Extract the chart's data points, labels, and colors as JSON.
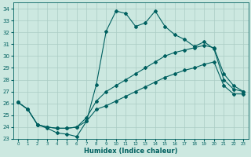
{
  "xlabel": "Humidex (Indice chaleur)",
  "bg_color": "#cce8e0",
  "line_color": "#006060",
  "grid_color": "#aaccc4",
  "xlim": [
    -0.5,
    23.5
  ],
  "ylim": [
    23,
    34.5
  ],
  "yticks": [
    23,
    24,
    25,
    26,
    27,
    28,
    29,
    30,
    31,
    32,
    33,
    34
  ],
  "xticks": [
    0,
    1,
    2,
    3,
    4,
    5,
    6,
    7,
    8,
    9,
    10,
    11,
    12,
    13,
    14,
    15,
    16,
    17,
    18,
    19,
    20,
    21,
    22,
    23
  ],
  "line1_y": [
    26.1,
    25.5,
    24.2,
    23.9,
    23.5,
    23.4,
    23.2,
    24.5,
    27.6,
    32.1,
    33.8,
    33.6,
    32.5,
    32.8,
    33.8,
    32.5,
    31.8,
    31.4,
    30.8,
    31.2,
    30.6,
    28.0,
    27.2,
    27.0
  ],
  "line2_y": [
    26.1,
    25.5,
    24.2,
    24.0,
    23.9,
    23.9,
    24.0,
    24.8,
    26.2,
    27.0,
    27.5,
    28.0,
    28.5,
    29.0,
    29.5,
    30.0,
    30.3,
    30.5,
    30.7,
    30.9,
    30.7,
    28.5,
    27.5,
    27.0
  ],
  "line3_y": [
    26.1,
    25.5,
    24.2,
    24.0,
    23.9,
    23.9,
    24.0,
    24.5,
    25.5,
    25.8,
    26.2,
    26.6,
    27.0,
    27.4,
    27.8,
    28.2,
    28.5,
    28.8,
    29.0,
    29.3,
    29.5,
    27.5,
    26.8,
    26.8
  ]
}
